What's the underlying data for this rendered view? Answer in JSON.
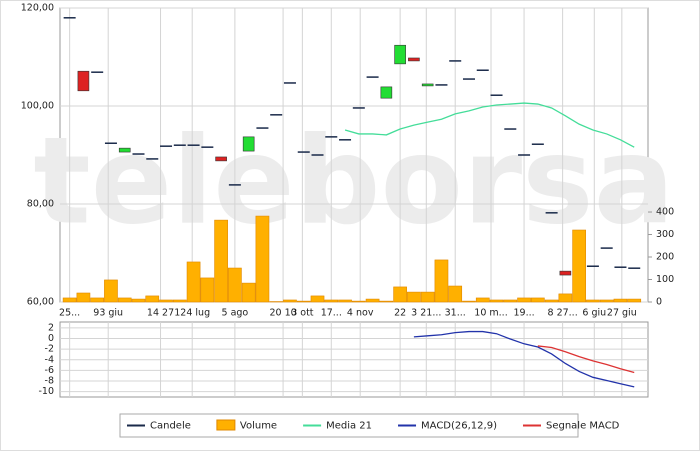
{
  "chart_data": [
    {
      "type": "candlestick",
      "watermark": "teleborsa",
      "xlim": [
        -0.7,
        42
      ],
      "xticks": [
        {
          "value": 0,
          "label": "25..."
        },
        {
          "value": 2.8,
          "label": "93 giu"
        },
        {
          "value": 6.6,
          "label": "14 27"
        },
        {
          "value": 8.9,
          "label": "124 lug"
        },
        {
          "value": 12,
          "label": "5 ago"
        },
        {
          "value": 15.5,
          "label": "20 10"
        },
        {
          "value": 16.9,
          "label": "3 ott"
        },
        {
          "value": 19,
          "label": "17..."
        },
        {
          "value": 21.1,
          "label": "4 nov"
        },
        {
          "value": 24,
          "label": "22"
        },
        {
          "value": 25.9,
          "label": "3 21..."
        },
        {
          "value": 28,
          "label": "31..."
        },
        {
          "value": 30.6,
          "label": "10 m..."
        },
        {
          "value": 33,
          "label": "19..."
        },
        {
          "value": 35.8,
          "label": "8 27..."
        },
        {
          "value": 38.1,
          "label": "6 giu"
        },
        {
          "value": 40.1,
          "label": "27 giu"
        }
      ],
      "ylim": [
        60,
        120
      ],
      "yticks": [
        {
          "value": 60,
          "label": "60,00"
        },
        {
          "value": 80,
          "label": "80,00"
        },
        {
          "value": 100,
          "label": "100,00"
        },
        {
          "value": 120,
          "label": "120,00"
        }
      ],
      "y2lim": [
        0,
        1307
      ],
      "y2ticks": [
        0,
        100,
        200,
        300,
        400
      ],
      "series": [
        {
          "name": "Candele",
          "type": "candle",
          "color": "#1a2a4a",
          "up_color": "#22dd33",
          "down_color": "#dd2222",
          "open": [
            118.0,
            107.1,
            106.9,
            92.4,
            90.6,
            90.2,
            89.2,
            91.8,
            92.0,
            92.0,
            91.6,
            89.6,
            83.9,
            90.8,
            95.5,
            98.2,
            104.7,
            90.6,
            90.0,
            93.7,
            93.1,
            99.6,
            105.9,
            101.6,
            108.6,
            109.8,
            104.1,
            104.3,
            109.2,
            105.5,
            107.3,
            102.2,
            95.3,
            90.0,
            92.2,
            78.2,
            66.3,
            null,
            67.3,
            71.0,
            67.1,
            66.9
          ],
          "close": [
            118.0,
            103.1,
            106.9,
            92.4,
            91.4,
            90.2,
            89.2,
            91.8,
            92.0,
            92.0,
            91.6,
            88.8,
            83.9,
            93.7,
            95.5,
            98.2,
            104.7,
            90.6,
            90.0,
            93.7,
            93.1,
            99.6,
            105.9,
            103.9,
            112.4,
            109.2,
            104.5,
            104.3,
            109.2,
            105.5,
            107.3,
            102.2,
            95.3,
            90.0,
            92.2,
            78.2,
            65.5,
            null,
            67.3,
            71.0,
            67.1,
            66.9
          ]
        },
        {
          "name": "Volume",
          "type": "bar",
          "axis": "y2",
          "color": "#ffb000",
          "values": [
            18,
            40,
            18,
            98,
            18,
            13,
            27,
            9,
            9,
            178,
            107,
            364,
            151,
            84,
            382,
            2,
            9,
            4,
            27,
            9,
            9,
            4,
            13,
            4,
            67,
            44,
            44,
            187,
            71,
            4,
            18,
            9,
            9,
            18,
            18,
            9,
            36,
            320,
            9,
            9,
            13,
            13
          ]
        },
        {
          "name": "Media 21",
          "type": "line",
          "color": "#44dd99",
          "values": [
            null,
            null,
            null,
            null,
            null,
            null,
            null,
            null,
            null,
            null,
            null,
            null,
            null,
            null,
            null,
            null,
            null,
            null,
            null,
            null,
            95.1,
            94.3,
            94.3,
            94.1,
            95.3,
            96.1,
            96.7,
            97.3,
            98.4,
            99.0,
            99.8,
            100.2,
            100.4,
            100.6,
            100.4,
            99.6,
            98.0,
            96.3,
            95.1,
            94.3,
            93.1,
            91.6
          ]
        }
      ]
    },
    {
      "type": "line",
      "xlim": [
        -0.7,
        42
      ],
      "ylim": [
        -11,
        3.1
      ],
      "yticks": [
        2,
        0,
        -2,
        -4,
        -6,
        -8,
        -10
      ],
      "series": [
        {
          "name": "MACD(26,12,9)",
          "type": "line",
          "color": "#2233aa",
          "values": [
            null,
            null,
            null,
            null,
            null,
            null,
            null,
            null,
            null,
            null,
            null,
            null,
            null,
            null,
            null,
            null,
            null,
            null,
            null,
            null,
            null,
            null,
            null,
            null,
            null,
            0.3,
            0.5,
            0.7,
            1.1,
            1.3,
            1.3,
            0.9,
            -0.1,
            -1.0,
            -1.6,
            -2.9,
            -4.7,
            -6.2,
            -7.3,
            -7.9,
            -8.5,
            -9.1
          ]
        },
        {
          "name": "Segnale MACD",
          "type": "line",
          "color": "#dd3333",
          "values": [
            null,
            null,
            null,
            null,
            null,
            null,
            null,
            null,
            null,
            null,
            null,
            null,
            null,
            null,
            null,
            null,
            null,
            null,
            null,
            null,
            null,
            null,
            null,
            null,
            null,
            null,
            null,
            null,
            null,
            null,
            null,
            null,
            null,
            null,
            -1.4,
            -1.7,
            -2.5,
            -3.4,
            -4.2,
            -4.9,
            -5.7,
            -6.4
          ]
        }
      ]
    }
  ]
}
